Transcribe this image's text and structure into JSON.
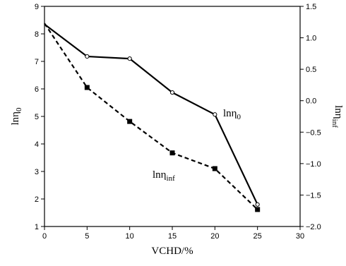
{
  "chart_data": {
    "type": "line",
    "title": "",
    "xlabel": "VCHD/%",
    "xlim": [
      0,
      30
    ],
    "x_ticks": [
      "0",
      "5",
      "10",
      "15",
      "20",
      "25",
      "30"
    ],
    "ylabel_left": {
      "base": "lnη",
      "sub": "0"
    },
    "ylim_left": [
      1,
      9
    ],
    "y_ticks_left": [
      "1",
      "2",
      "3",
      "4",
      "5",
      "6",
      "7",
      "8",
      "9"
    ],
    "ylabel_right": {
      "base": "lnη",
      "sub": "inf"
    },
    "ylim_right": [
      -2.0,
      1.5
    ],
    "y_ticks_right": [
      "1.5",
      "1.0",
      "0.5",
      "0.0",
      "−0.5",
      "−1.0",
      "−1.5",
      "−2.0"
    ],
    "grid": false,
    "legend": "none",
    "series": [
      {
        "name": "lnη0",
        "label": {
          "base": "lnη",
          "sub": "0"
        },
        "axis": "left",
        "style": "solid",
        "marker": "open-circle",
        "color": "#000000",
        "x": [
          0,
          5,
          10,
          15,
          20,
          25
        ],
        "y": [
          8.35,
          7.18,
          7.1,
          5.87,
          5.07,
          1.8
        ]
      },
      {
        "name": "lnηinf",
        "label": {
          "base": "lnη",
          "sub": "inf"
        },
        "axis": "right",
        "style": "dashed",
        "marker": "filled-square",
        "color": "#000000",
        "x": [
          0,
          5,
          10,
          15,
          20,
          25
        ],
        "y": [
          1.23,
          0.21,
          -0.33,
          -0.83,
          -1.08,
          -1.73
        ]
      }
    ]
  }
}
